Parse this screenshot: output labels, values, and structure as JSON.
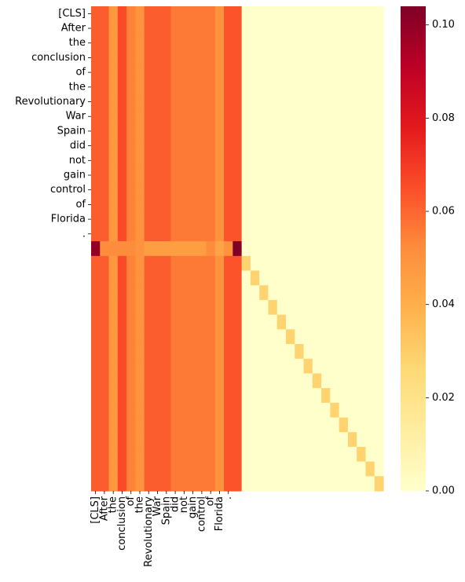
{
  "chart_data": {
    "type": "heatmap",
    "title": "",
    "xlabel": "",
    "ylabel": "",
    "colormap": "YlOrRd",
    "vmin": 0.0,
    "vmax": 0.104,
    "n_rows": 33,
    "n_cols": 33,
    "x_tick_labels": [
      "[CLS]",
      "After",
      "the",
      "conclusion",
      "of",
      "the",
      "Revolutionary",
      "War",
      "Spain",
      "did",
      "not",
      "gain",
      "control",
      "of",
      "Florida",
      "."
    ],
    "y_tick_labels": [
      "[CLS]",
      "After",
      "the",
      "conclusion",
      "of",
      "the",
      "Revolutionary",
      "War",
      "Spain",
      "did",
      "not",
      "gain",
      "control",
      "of",
      "Florida",
      "."
    ],
    "colorbar_ticks": [
      0.0,
      0.02,
      0.04,
      0.06,
      0.08,
      0.1
    ],
    "colorbar_tick_labels": [
      "0.00",
      "0.02",
      "0.04",
      "0.06",
      "0.08",
      "0.10"
    ],
    "token_row_column_values": [
      0.062,
      0.062,
      0.048,
      0.066,
      0.054,
      0.05,
      0.062,
      0.062,
      0.062,
      0.056,
      0.056,
      0.056,
      0.056,
      0.056,
      0.05,
      0.064
    ],
    "sep_row_values": [
      0.1,
      0.052,
      0.052,
      0.052,
      0.052,
      0.05,
      0.046,
      0.046,
      0.046,
      0.046,
      0.046,
      0.046,
      0.046,
      0.052,
      0.044,
      0.05,
      0.104
    ],
    "diagonal_value": 0.028,
    "notes_on_regions": {
      "rows_0_15": "token rows attend to columns 0-16 only, remaining columns 0",
      "row_16": "separator row, attends to columns 0-16",
      "rows_17_32": "attend to columns 0-15 plus own diagonal position"
    }
  }
}
